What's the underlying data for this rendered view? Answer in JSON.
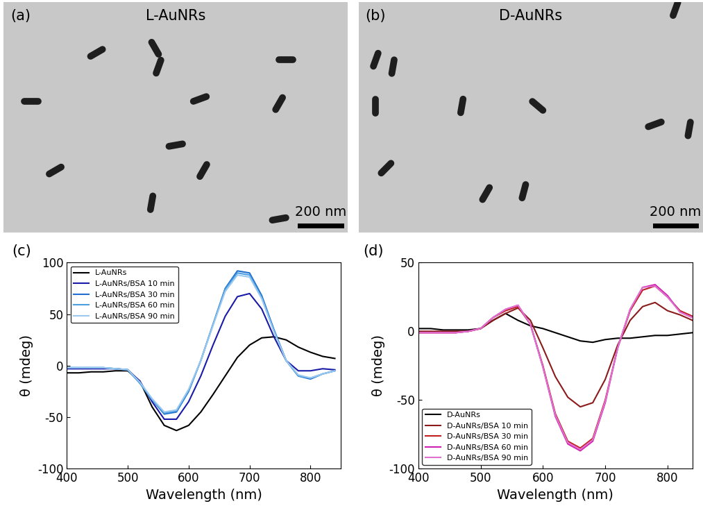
{
  "images": [
    {
      "label": "(a)",
      "title": "L-AuNRs",
      "scale_bar": "200 nm"
    },
    {
      "label": "(b)",
      "title": "D-AuNRs",
      "scale_bar": "200 nm"
    }
  ],
  "chart_data": [
    {
      "type": "line",
      "label": "(c)",
      "x_label": "Wavelength (nm)",
      "y_label": "θ (mdeg)",
      "xlim": [
        400,
        850
      ],
      "xticks": [
        400,
        500,
        600,
        700,
        800
      ],
      "ylim": [
        -100,
        100
      ],
      "yticks": [
        -100,
        -50,
        0,
        50,
        100
      ],
      "legend": "upper left",
      "x": [
        400,
        420,
        440,
        460,
        480,
        500,
        520,
        540,
        560,
        580,
        600,
        620,
        640,
        660,
        680,
        700,
        720,
        740,
        760,
        780,
        800,
        820,
        840
      ],
      "series": [
        {
          "name": "L-AuNRs",
          "color": "#000000",
          "values": [
            -7,
            -7,
            -6,
            -6,
            -5,
            -5,
            -15,
            -40,
            -58,
            -63,
            -58,
            -45,
            -28,
            -10,
            8,
            20,
            27,
            28,
            25,
            18,
            13,
            9,
            7
          ]
        },
        {
          "name": "L-AuNRs/BSA 10 min",
          "color": "#1a1aa8",
          "values": [
            -3,
            -3,
            -3,
            -3,
            -3,
            -4,
            -15,
            -35,
            -52,
            -52,
            -35,
            -10,
            20,
            48,
            67,
            70,
            55,
            28,
            5,
            -5,
            -5,
            -3,
            -4
          ]
        },
        {
          "name": "L-AuNRs/BSA 30 min",
          "color": "#1f6fd0",
          "values": [
            -2,
            -2,
            -2,
            -2,
            -3,
            -4,
            -17,
            -33,
            -47,
            -45,
            -25,
            5,
            40,
            75,
            92,
            90,
            68,
            35,
            5,
            -10,
            -13,
            -8,
            -5
          ]
        },
        {
          "name": "L-AuNRs/BSA 60 min",
          "color": "#4a9fe0",
          "values": [
            -2,
            -2,
            -2,
            -2,
            -3,
            -4,
            -17,
            -33,
            -46,
            -44,
            -24,
            5,
            40,
            74,
            90,
            88,
            66,
            34,
            5,
            -10,
            -12,
            -8,
            -5
          ]
        },
        {
          "name": "L-AuNRs/BSA 90 min",
          "color": "#9ac8ee",
          "values": [
            -2,
            -2,
            -2,
            -2,
            -3,
            -4,
            -16,
            -32,
            -45,
            -43,
            -23,
            5,
            39,
            72,
            88,
            86,
            65,
            33,
            5,
            -9,
            -12,
            -8,
            -5
          ]
        }
      ]
    },
    {
      "type": "line",
      "label": "(d)",
      "x_label": "Wavelength (nm)",
      "y_label": "θ (mdeg)",
      "xlim": [
        400,
        840
      ],
      "xticks": [
        400,
        500,
        600,
        700,
        800
      ],
      "ylim": [
        -100,
        50
      ],
      "yticks": [
        -100,
        -50,
        0,
        50
      ],
      "legend": "lower left",
      "x": [
        400,
        420,
        440,
        460,
        480,
        500,
        520,
        540,
        560,
        580,
        600,
        620,
        640,
        660,
        680,
        700,
        720,
        740,
        760,
        780,
        800,
        820,
        840
      ],
      "series": [
        {
          "name": "D-AuNRs",
          "color": "#000000",
          "values": [
            2,
            2,
            1,
            1,
            1,
            2,
            8,
            13,
            8,
            4,
            2,
            -1,
            -4,
            -7,
            -8,
            -6,
            -5,
            -5,
            -4,
            -3,
            -3,
            -2,
            -1
          ]
        },
        {
          "name": "D-AuNRs/BSA 10 min",
          "color": "#8b1a1a",
          "values": [
            0,
            0,
            0,
            0,
            0,
            2,
            8,
            13,
            17,
            8,
            -12,
            -33,
            -48,
            -55,
            -52,
            -35,
            -10,
            8,
            18,
            21,
            15,
            12,
            8
          ]
        },
        {
          "name": "D-AuNRs/BSA 30 min",
          "color": "#c02020",
          "values": [
            -1,
            -1,
            -1,
            -1,
            0,
            2,
            10,
            15,
            18,
            5,
            -25,
            -60,
            -80,
            -85,
            -78,
            -50,
            -12,
            15,
            30,
            33,
            25,
            15,
            11
          ]
        },
        {
          "name": "D-AuNRs/BSA 60 min",
          "color": "#d020b0",
          "values": [
            -1,
            -1,
            -1,
            -1,
            0,
            2,
            10,
            16,
            19,
            5,
            -26,
            -62,
            -82,
            -87,
            -80,
            -52,
            -12,
            16,
            32,
            34,
            26,
            14,
            10
          ]
        },
        {
          "name": "D-AuNRs/BSA 90 min",
          "color": "#e070d0",
          "values": [
            -1,
            -1,
            -1,
            -1,
            0,
            2,
            10,
            16,
            19,
            5,
            -26,
            -61,
            -81,
            -86,
            -79,
            -51,
            -12,
            16,
            32,
            33,
            25,
            14,
            10
          ]
        }
      ]
    }
  ]
}
